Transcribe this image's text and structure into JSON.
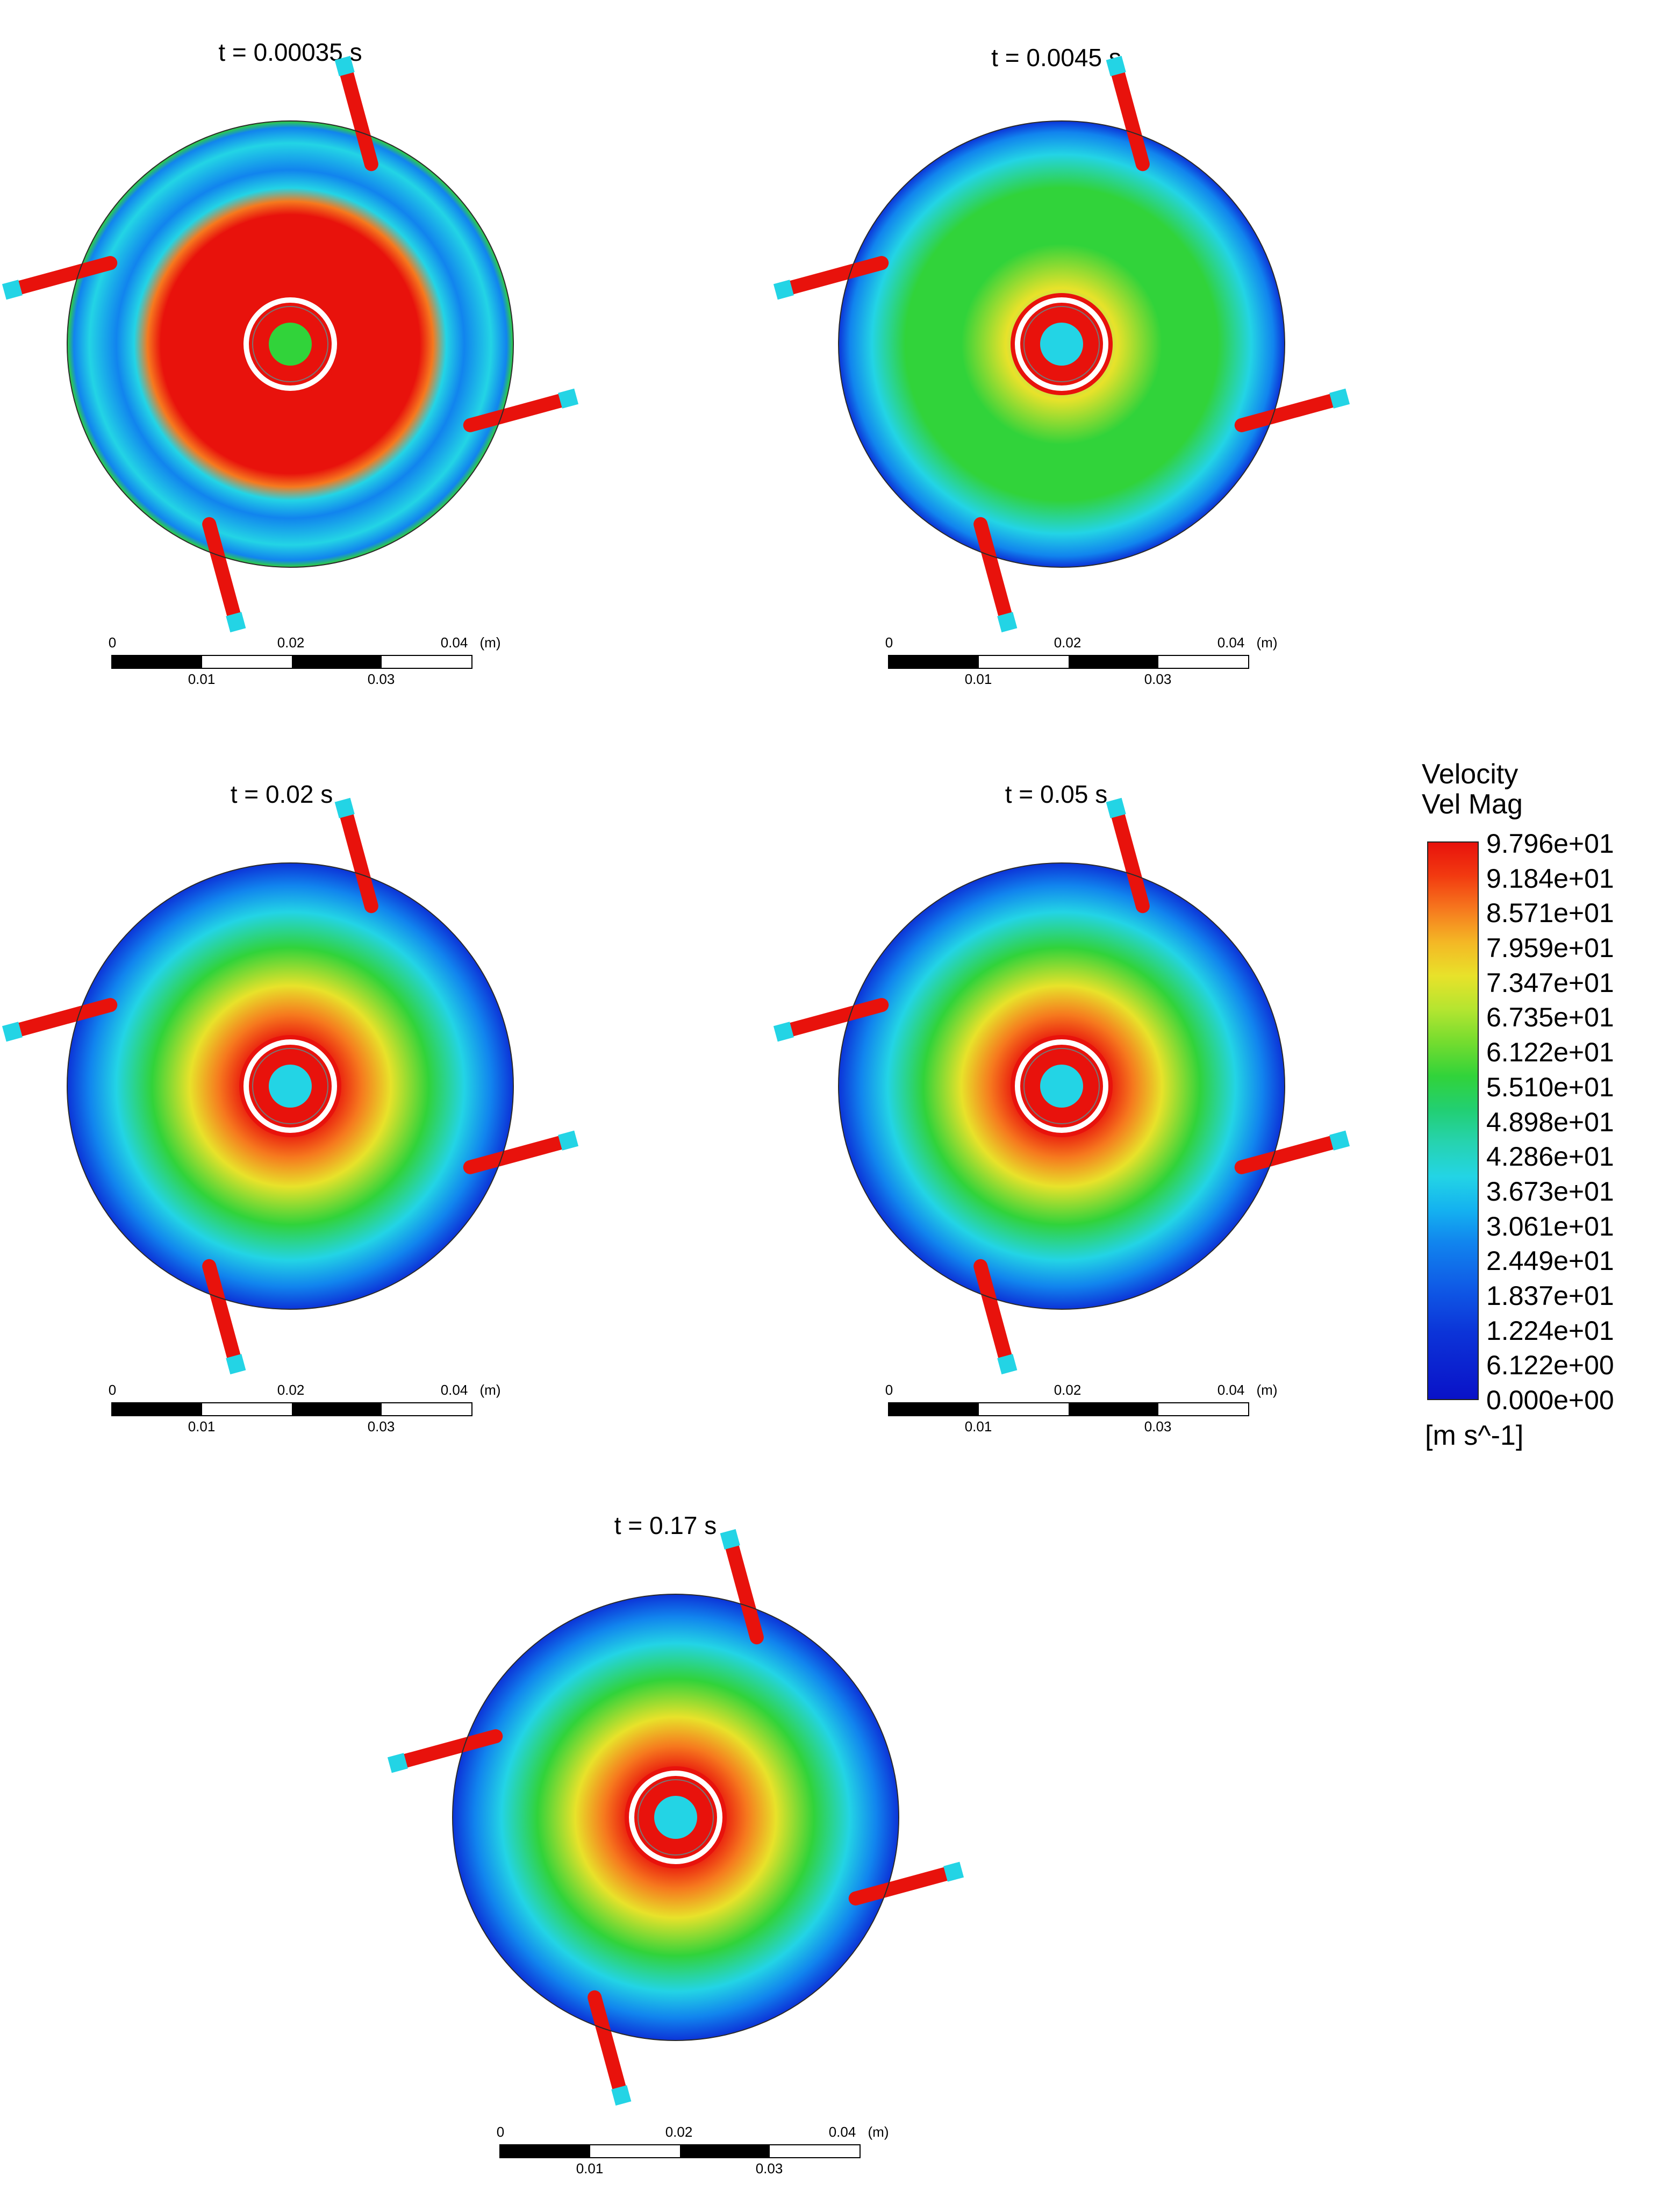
{
  "panels": [
    {
      "title": "t = 0.00035 s",
      "state": "early"
    },
    {
      "title": "t = 0.0045 s",
      "state": "developing"
    },
    {
      "title": "t = 0.02 s",
      "state": "developed"
    },
    {
      "title": "t = 0.05 s",
      "state": "developed"
    },
    {
      "title": "t = 0.17 s",
      "state": "developed"
    }
  ],
  "scalebar": {
    "top_labels": [
      "0",
      "0.02",
      "0.04"
    ],
    "unit": "(m)",
    "bottom_labels": [
      "0.01",
      "0.03"
    ]
  },
  "legend": {
    "title_line1": "Velocity",
    "title_line2": "Vel Mag",
    "ticks": [
      "9.796e+01",
      "9.184e+01",
      "8.571e+01",
      "7.959e+01",
      "7.347e+01",
      "6.735e+01",
      "6.122e+01",
      "5.510e+01",
      "4.898e+01",
      "4.286e+01",
      "3.673e+01",
      "3.061e+01",
      "2.449e+01",
      "1.837e+01",
      "1.224e+01",
      "6.122e+00",
      "0.000e+00"
    ],
    "unit": "[m s^-1]"
  },
  "colors": {
    "red": "#e8120c",
    "orange": "#f6791e",
    "yellow": "#e8e22a",
    "green": "#31d33a",
    "cyan": "#23d4e5",
    "blue": "#0c34d8",
    "light_blue": "#1184ee"
  }
}
